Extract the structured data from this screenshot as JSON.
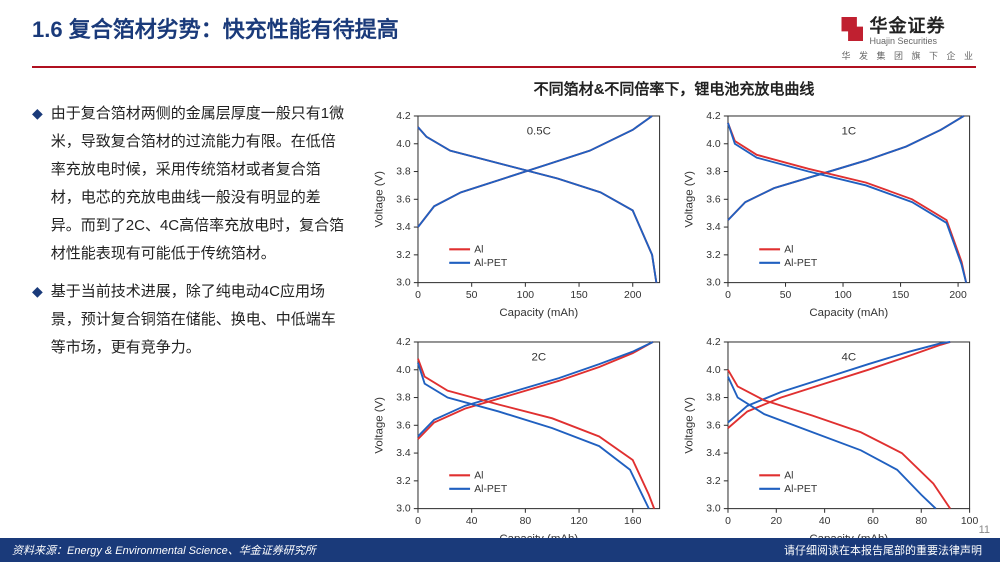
{
  "header": {
    "title": "1.6 复合箔材劣势：快充性能有待提高",
    "logo_cn": "华金证券",
    "logo_en": "Huajin Securities",
    "logo_sub": "华 发 集 团 旗 下 企 业"
  },
  "bullets": [
    "由于复合箔材两侧的金属层厚度一般只有1微米，导致复合箔材的过流能力有限。在低倍率充放电时候，采用传统箔材或者复合箔材，电芯的充放电曲线一般没有明显的差异。而到了2C、4C高倍率充放电时，复合箔材性能表现有可能低于传统箔材。",
    "基于当前技术进展，除了纯电动4C应用场景，预计复合铜箔在储能、换电、中低端车等市场，更有竞争力。"
  ],
  "charts_title": "不同箔材&不同倍率下，锂电池充放电曲线",
  "footer": {
    "source": "资料来源：Energy & Environmental Science、华金证券研究所",
    "legal": "请仔细阅读在本报告尾部的重要法律声明",
    "page": "11"
  },
  "chart_common": {
    "ylabel": "Voltage (V)",
    "xlabel": "Capacity (mAh)",
    "ylim": [
      3.0,
      4.2
    ],
    "ytick_step": 0.2,
    "legend": [
      {
        "label": "Al",
        "color": "#e03030"
      },
      {
        "label": "Al-PET",
        "color": "#2060c0"
      }
    ],
    "label_fontsize": 11,
    "tick_fontsize": 10,
    "background": "#ffffff",
    "axis_color": "#333333",
    "line_width": 1.8
  },
  "charts": [
    {
      "rate_label": "0.5C",
      "xlim": [
        0,
        225
      ],
      "xtick_step": 50,
      "series": [
        {
          "name": "Al_charge",
          "color": "#e03030",
          "pts": [
            [
              0,
              3.4
            ],
            [
              15,
              3.55
            ],
            [
              40,
              3.65
            ],
            [
              80,
              3.75
            ],
            [
              120,
              3.85
            ],
            [
              160,
              3.95
            ],
            [
              200,
              4.1
            ],
            [
              218,
              4.2
            ]
          ]
        },
        {
          "name": "AlPET_charge",
          "color": "#2060c0",
          "pts": [
            [
              0,
              3.4
            ],
            [
              15,
              3.55
            ],
            [
              40,
              3.65
            ],
            [
              80,
              3.75
            ],
            [
              120,
              3.85
            ],
            [
              160,
              3.95
            ],
            [
              200,
              4.1
            ],
            [
              218,
              4.2
            ]
          ]
        },
        {
          "name": "Al_discharge",
          "color": "#e03030",
          "pts": [
            [
              0,
              4.12
            ],
            [
              8,
              4.05
            ],
            [
              30,
              3.95
            ],
            [
              80,
              3.85
            ],
            [
              130,
              3.75
            ],
            [
              170,
              3.65
            ],
            [
              200,
              3.52
            ],
            [
              218,
              3.2
            ],
            [
              222,
              3.0
            ]
          ]
        },
        {
          "name": "AlPET_discharge",
          "color": "#2060c0",
          "pts": [
            [
              0,
              4.12
            ],
            [
              8,
              4.05
            ],
            [
              30,
              3.95
            ],
            [
              80,
              3.85
            ],
            [
              130,
              3.75
            ],
            [
              170,
              3.65
            ],
            [
              200,
              3.52
            ],
            [
              218,
              3.2
            ],
            [
              222,
              3.0
            ]
          ]
        }
      ]
    },
    {
      "rate_label": "1C",
      "xlim": [
        0,
        210
      ],
      "xtick_step": 50,
      "series": [
        {
          "name": "Al_charge",
          "color": "#e03030",
          "pts": [
            [
              0,
              3.45
            ],
            [
              15,
              3.58
            ],
            [
              40,
              3.68
            ],
            [
              80,
              3.78
            ],
            [
              120,
              3.88
            ],
            [
              155,
              3.98
            ],
            [
              185,
              4.1
            ],
            [
              205,
              4.2
            ]
          ]
        },
        {
          "name": "AlPET_charge",
          "color": "#2060c0",
          "pts": [
            [
              0,
              3.45
            ],
            [
              15,
              3.58
            ],
            [
              40,
              3.68
            ],
            [
              80,
              3.78
            ],
            [
              120,
              3.88
            ],
            [
              155,
              3.98
            ],
            [
              185,
              4.1
            ],
            [
              205,
              4.2
            ]
          ]
        },
        {
          "name": "Al_discharge",
          "color": "#e03030",
          "pts": [
            [
              0,
              4.15
            ],
            [
              6,
              4.02
            ],
            [
              25,
              3.92
            ],
            [
              70,
              3.82
            ],
            [
              120,
              3.72
            ],
            [
              160,
              3.6
            ],
            [
              190,
              3.45
            ],
            [
              203,
              3.15
            ],
            [
              207,
              3.0
            ]
          ]
        },
        {
          "name": "AlPET_discharge",
          "color": "#2060c0",
          "pts": [
            [
              0,
              4.15
            ],
            [
              6,
              4.0
            ],
            [
              25,
              3.9
            ],
            [
              70,
              3.8
            ],
            [
              120,
              3.7
            ],
            [
              160,
              3.58
            ],
            [
              190,
              3.43
            ],
            [
              203,
              3.13
            ],
            [
              207,
              3.0
            ]
          ]
        }
      ]
    },
    {
      "rate_label": "2C",
      "xlim": [
        0,
        180
      ],
      "xtick_step": 40,
      "series": [
        {
          "name": "Al_charge",
          "color": "#e03030",
          "pts": [
            [
              0,
              3.5
            ],
            [
              12,
              3.62
            ],
            [
              35,
              3.72
            ],
            [
              70,
              3.82
            ],
            [
              105,
              3.92
            ],
            [
              135,
              4.02
            ],
            [
              160,
              4.12
            ],
            [
              175,
              4.2
            ]
          ]
        },
        {
          "name": "AlPET_charge",
          "color": "#2060c0",
          "pts": [
            [
              0,
              3.52
            ],
            [
              12,
              3.64
            ],
            [
              35,
              3.74
            ],
            [
              70,
              3.84
            ],
            [
              105,
              3.94
            ],
            [
              135,
              4.04
            ],
            [
              160,
              4.13
            ],
            [
              175,
              4.2
            ]
          ]
        },
        {
          "name": "Al_discharge",
          "color": "#e03030",
          "pts": [
            [
              0,
              4.08
            ],
            [
              5,
              3.95
            ],
            [
              22,
              3.85
            ],
            [
              60,
              3.75
            ],
            [
              100,
              3.65
            ],
            [
              135,
              3.52
            ],
            [
              160,
              3.35
            ],
            [
              172,
              3.1
            ],
            [
              176,
              3.0
            ]
          ]
        },
        {
          "name": "AlPET_discharge",
          "color": "#2060c0",
          "pts": [
            [
              0,
              4.05
            ],
            [
              5,
              3.9
            ],
            [
              22,
              3.8
            ],
            [
              60,
              3.7
            ],
            [
              100,
              3.58
            ],
            [
              135,
              3.45
            ],
            [
              158,
              3.28
            ],
            [
              168,
              3.08
            ],
            [
              172,
              3.0
            ]
          ]
        }
      ]
    },
    {
      "rate_label": "4C",
      "xlim": [
        0,
        100
      ],
      "xtick_step": 20,
      "series": [
        {
          "name": "Al_charge",
          "color": "#e03030",
          "pts": [
            [
              0,
              3.58
            ],
            [
              8,
              3.7
            ],
            [
              22,
              3.8
            ],
            [
              40,
              3.9
            ],
            [
              58,
              4.0
            ],
            [
              75,
              4.1
            ],
            [
              88,
              4.18
            ],
            [
              92,
              4.2
            ]
          ]
        },
        {
          "name": "AlPET_charge",
          "color": "#2060c0",
          "pts": [
            [
              0,
              3.62
            ],
            [
              8,
              3.74
            ],
            [
              22,
              3.84
            ],
            [
              40,
              3.94
            ],
            [
              58,
              4.04
            ],
            [
              75,
              4.13
            ],
            [
              88,
              4.19
            ],
            [
              92,
              4.2
            ]
          ]
        },
        {
          "name": "Al_discharge",
          "color": "#e03030",
          "pts": [
            [
              0,
              4.0
            ],
            [
              4,
              3.88
            ],
            [
              15,
              3.78
            ],
            [
              35,
              3.67
            ],
            [
              55,
              3.55
            ],
            [
              72,
              3.4
            ],
            [
              85,
              3.18
            ],
            [
              92,
              3.0
            ]
          ]
        },
        {
          "name": "AlPET_discharge",
          "color": "#2060c0",
          "pts": [
            [
              0,
              3.95
            ],
            [
              4,
              3.8
            ],
            [
              15,
              3.68
            ],
            [
              35,
              3.55
            ],
            [
              55,
              3.42
            ],
            [
              70,
              3.28
            ],
            [
              80,
              3.1
            ],
            [
              86,
              3.0
            ]
          ]
        }
      ]
    }
  ]
}
